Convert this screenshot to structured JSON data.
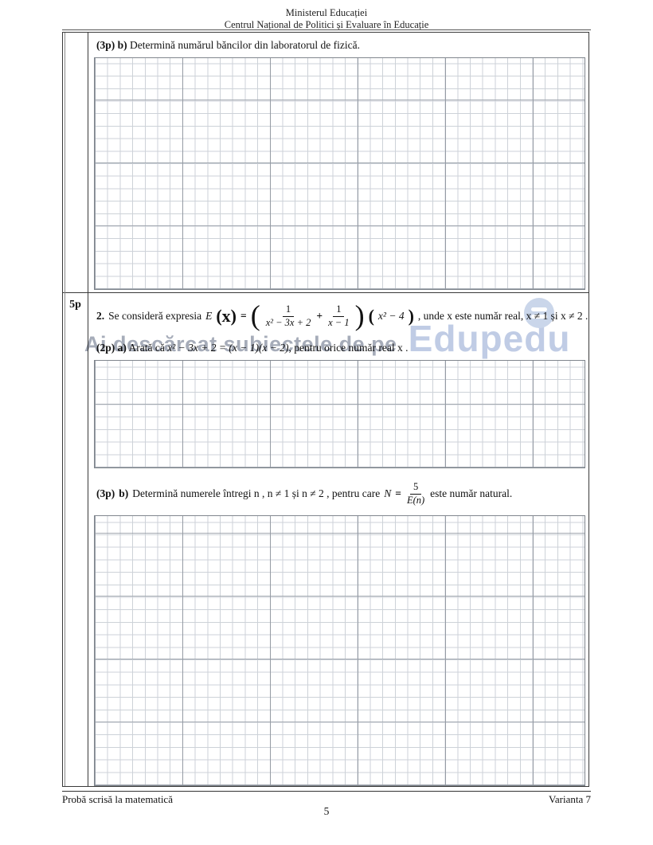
{
  "header": {
    "line1": "Ministerul Educației",
    "line2": "Centrul Național de Politici și Evaluare în Educație"
  },
  "q1b": {
    "marks": "(3p)",
    "letter": "b)",
    "text": "Determină numărul băncilor din laboratorul de fizică."
  },
  "q2": {
    "points": "5p",
    "number": "2.",
    "intro": "Se consideră expresia",
    "func": "E",
    "arg": "(x)",
    "eq": "=",
    "lparen": "(",
    "rparen": ")",
    "frac1": {
      "num": "1",
      "den": "x² − 3x + 2"
    },
    "plus": "+",
    "frac2": {
      "num": "1",
      "den": "x − 1"
    },
    "factor": "x² − 4",
    "tail": ", unde x este număr real, x ≠ 1 și x ≠ 2 ."
  },
  "q2a": {
    "marks": "(2p)",
    "letter": "a)",
    "before": "Arată că",
    "math": "x² − 3x + 2 = (x − 1)(x − 2)",
    "after": ", pentru orice număr real x ."
  },
  "q2b": {
    "marks": "(3p)",
    "letter": "b)",
    "before": "Determină numerele întregi n , n ≠ 1 și n ≠ 2 , pentru care",
    "nvar": "N",
    "eq": "=",
    "frac": {
      "num": "5",
      "den": "E(n)"
    },
    "after": "este număr natural."
  },
  "watermark": {
    "text": "Ai descărcat subiectele de pe",
    "brand": "Edupedu",
    "logo_icon": "edupedu-circle-logo",
    "text_color": "#a6acb9",
    "brand_color": "#c0cce5",
    "logo_color": "#cad6ea"
  },
  "footer": {
    "left": "Probă scrisă la matematică",
    "right": "Varianta 7",
    "page": "5"
  }
}
